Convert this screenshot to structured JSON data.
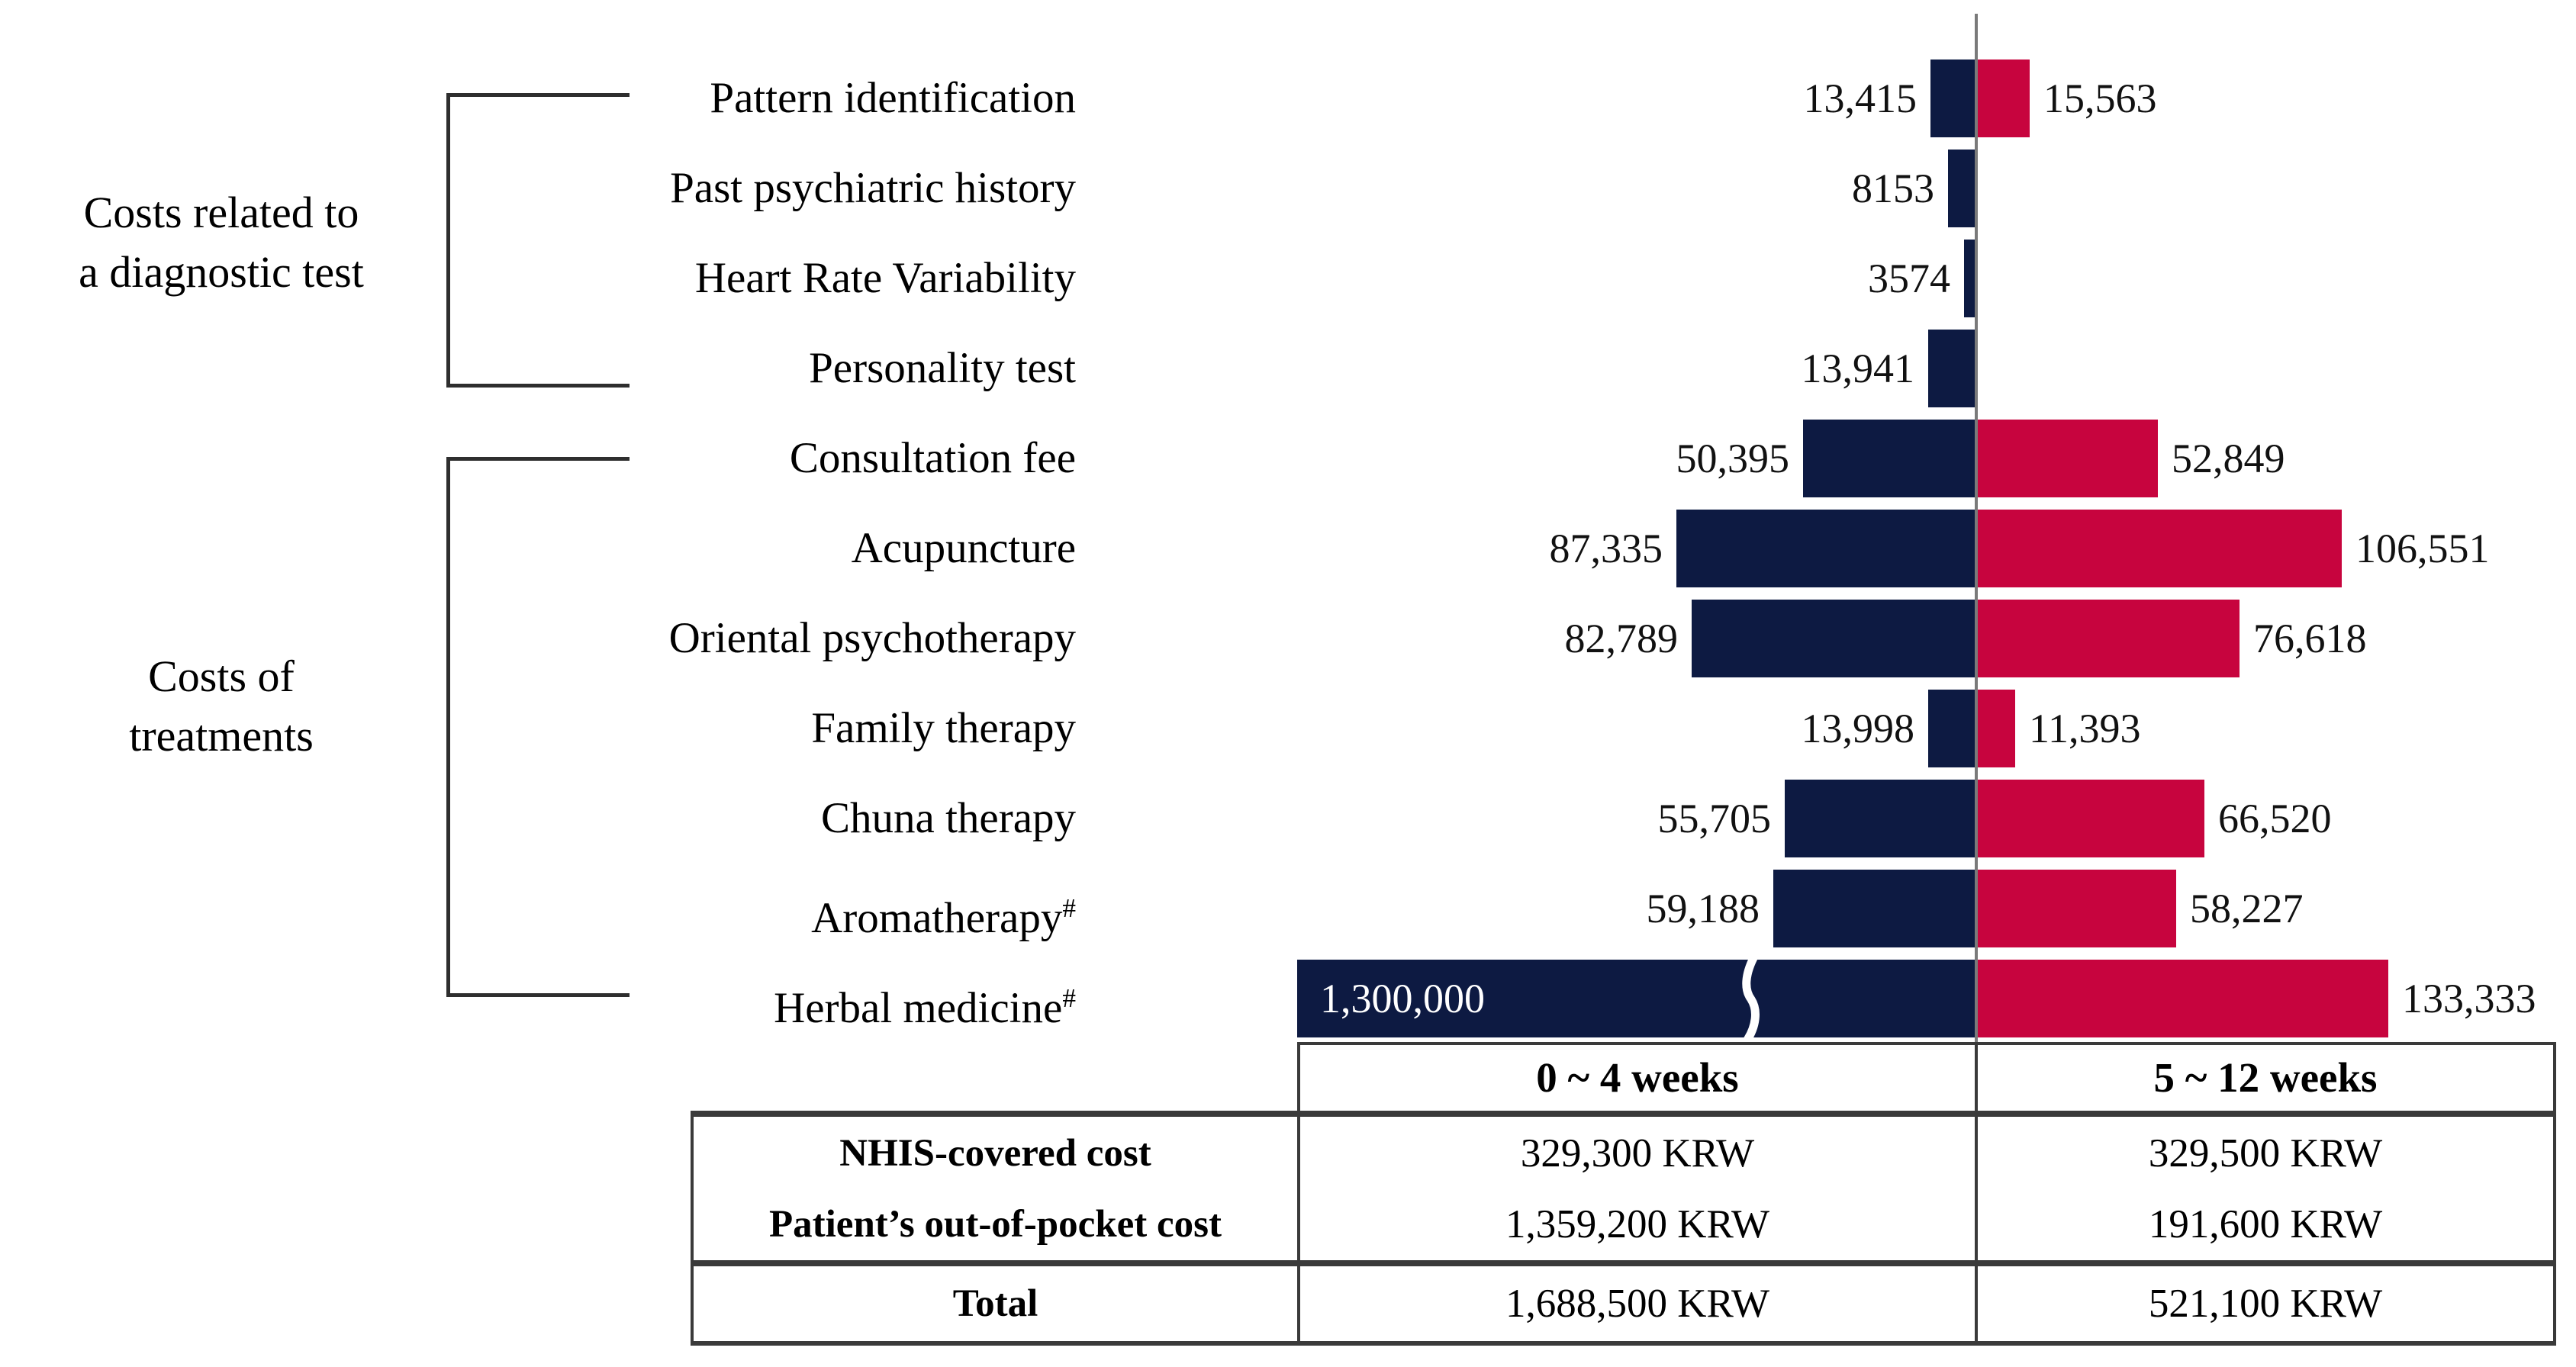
{
  "figure": {
    "description": "Diverging horizontal bar chart of medical costs (KRW) by treatment period with summary table",
    "unit": "KRW"
  },
  "groups": [
    {
      "label_lines": [
        "Costs related to",
        "a diagnostic test"
      ],
      "categories": [
        "Pattern identification",
        "Past psychiatric history",
        "Heart Rate Variability",
        "Personality test"
      ]
    },
    {
      "label_lines": [
        "Costs of",
        "treatments"
      ],
      "categories": [
        "Consultation fee",
        "Acupuncture",
        "Oriental psychotherapy",
        "Family therapy",
        "Chuna therapy",
        "Aromatherapy#",
        "Herbal medicine#"
      ]
    }
  ],
  "colors": {
    "navy": "#0D1A42",
    "crimson": "#C7043E",
    "axis_gray": "#7a7a7a",
    "table_border": "#3a3a3a"
  },
  "chart_data": {
    "type": "bar",
    "orientation": "horizontal-diverging",
    "title": "",
    "xlabel": "",
    "ylabel": "",
    "unit": "KRW",
    "categories": [
      "Pattern identification",
      "Past psychiatric history",
      "Heart Rate Variability",
      "Personality test",
      "Consultation fee",
      "Acupuncture",
      "Oriental psychotherapy",
      "Family therapy",
      "Chuna therapy",
      "Aromatherapy#",
      "Herbal medicine#"
    ],
    "series": [
      {
        "name": "0 ~ 4 weeks",
        "side": "left",
        "color": "#0D1A42",
        "values": [
          13415,
          8153,
          3574,
          13941,
          50395,
          87335,
          82789,
          13998,
          55705,
          59188,
          1300000
        ],
        "labels": [
          "13,415",
          "8153",
          "3574",
          "13,941",
          "50,395",
          "87,335",
          "82,789",
          "13,998",
          "55,705",
          "59,188",
          "1,300,000"
        ]
      },
      {
        "name": "5 ~ 12 weeks",
        "side": "right",
        "color": "#C7043E",
        "values": [
          15563,
          0,
          0,
          0,
          52849,
          106551,
          76618,
          11393,
          66520,
          58227,
          133333
        ],
        "labels": [
          "15,563",
          "",
          "",
          "",
          "52,849",
          "106,551",
          "76,618",
          "11,393",
          "66,520",
          "58,227",
          "133,333"
        ]
      }
    ],
    "axis_break": {
      "category": "Herbal medicine#",
      "series": "0 ~ 4 weeks"
    },
    "legend_position": "none",
    "grid": false
  },
  "table": {
    "col_headers": [
      "0 ~ 4 weeks",
      "5 ~ 12 weeks"
    ],
    "rows": [
      {
        "label": "NHIS-covered cost",
        "values": [
          "329,300 KRW",
          "329,500 KRW"
        ]
      },
      {
        "label": "Patient’s out-of-pocket cost",
        "values": [
          "1,359,200 KRW",
          "191,600 KRW"
        ]
      },
      {
        "label": "Total",
        "values": [
          "1,688,500 KRW",
          "521,100 KRW"
        ]
      }
    ]
  }
}
